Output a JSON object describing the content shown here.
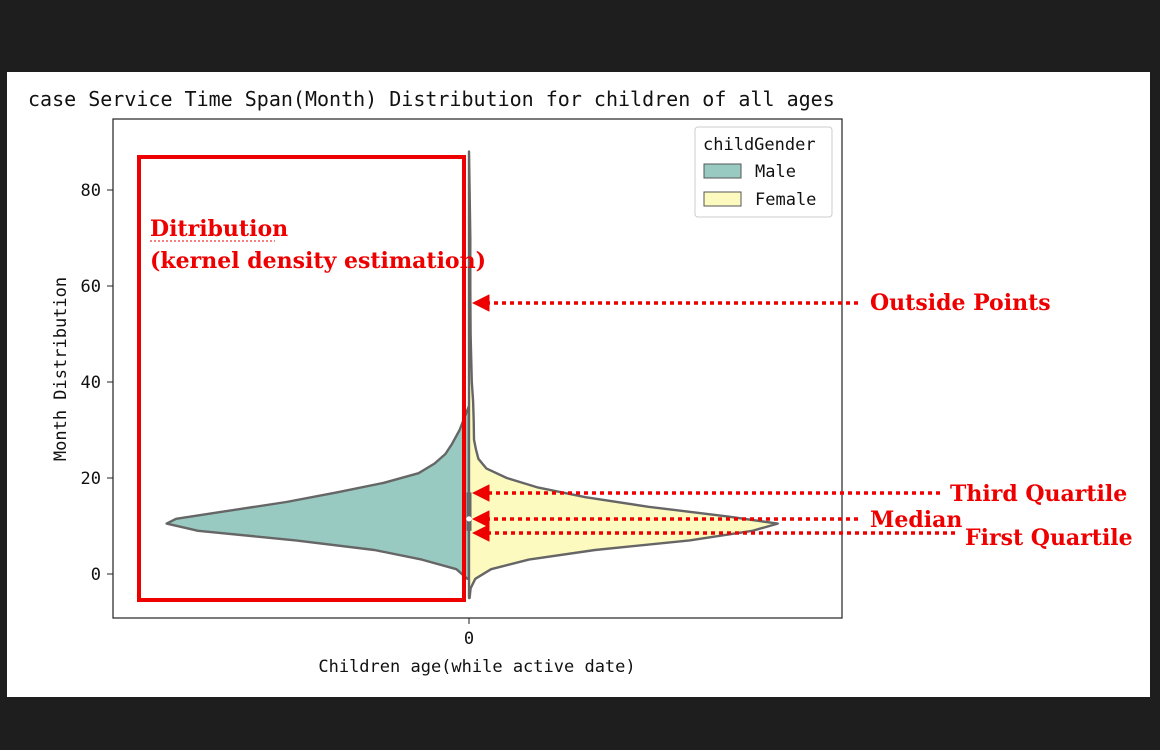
{
  "chart_data": {
    "type": "violin",
    "title": "case Service Time Span(Month) Distribution for children of all ages",
    "xlabel": "Children age(while active date)",
    "ylabel": "Month Distribution",
    "categories": [
      "0"
    ],
    "ylim": [
      -9,
      95
    ],
    "yticks": [
      0,
      20,
      40,
      60,
      80
    ],
    "legend": {
      "title": "childGender",
      "placement": "top-right",
      "entries": [
        {
          "name": "Male",
          "color": "#98cac1"
        },
        {
          "name": "Female",
          "color": "#fdfac0"
        }
      ]
    },
    "series": [
      {
        "name": "Male",
        "side": "left",
        "color": "#98cac1",
        "density": [
          {
            "y": -1,
            "d": 0.005
          },
          {
            "y": 1,
            "d": 0.04
          },
          {
            "y": 3,
            "d": 0.15
          },
          {
            "y": 5,
            "d": 0.3
          },
          {
            "y": 7,
            "d": 0.55
          },
          {
            "y": 9,
            "d": 0.86
          },
          {
            "y": 10.5,
            "d": 0.96
          },
          {
            "y": 11.5,
            "d": 0.93
          },
          {
            "y": 13,
            "d": 0.78
          },
          {
            "y": 15,
            "d": 0.58
          },
          {
            "y": 17,
            "d": 0.42
          },
          {
            "y": 19,
            "d": 0.27
          },
          {
            "y": 21,
            "d": 0.16
          },
          {
            "y": 23,
            "d": 0.11
          },
          {
            "y": 25,
            "d": 0.075
          },
          {
            "y": 27,
            "d": 0.055
          },
          {
            "y": 30,
            "d": 0.03
          },
          {
            "y": 33,
            "d": 0.012
          },
          {
            "y": 35,
            "d": 0.0
          }
        ]
      },
      {
        "name": "Female",
        "side": "right",
        "color": "#fdfac0",
        "density": [
          {
            "y": -5,
            "d": 0.002
          },
          {
            "y": -3,
            "d": 0.005
          },
          {
            "y": -1,
            "d": 0.02
          },
          {
            "y": 1,
            "d": 0.07
          },
          {
            "y": 3,
            "d": 0.19
          },
          {
            "y": 5,
            "d": 0.4
          },
          {
            "y": 7,
            "d": 0.7
          },
          {
            "y": 9,
            "d": 0.9
          },
          {
            "y": 10.5,
            "d": 0.98
          },
          {
            "y": 12,
            "d": 0.82
          },
          {
            "y": 14,
            "d": 0.57
          },
          {
            "y": 16,
            "d": 0.37
          },
          {
            "y": 18,
            "d": 0.22
          },
          {
            "y": 20,
            "d": 0.12
          },
          {
            "y": 22,
            "d": 0.055
          },
          {
            "y": 24,
            "d": 0.03
          },
          {
            "y": 26,
            "d": 0.022
          },
          {
            "y": 28,
            "d": 0.016
          },
          {
            "y": 32,
            "d": 0.015
          },
          {
            "y": 36,
            "d": 0.013
          },
          {
            "y": 40,
            "d": 0.009
          },
          {
            "y": 45,
            "d": 0.007
          },
          {
            "y": 50,
            "d": 0.005
          },
          {
            "y": 60,
            "d": 0.004
          },
          {
            "y": 70,
            "d": 0.004
          },
          {
            "y": 80,
            "d": 0.002
          },
          {
            "y": 88,
            "d": 0.0
          }
        ]
      }
    ],
    "box": {
      "q1": 9,
      "median": 11.5,
      "q3": 17
    },
    "annotations": {
      "distribution_line1": "Ditribution",
      "distribution_line2": "(kernel density estimation)",
      "outside_points": "Outside Points",
      "third_quartile": "Third Quartile",
      "median": "Median",
      "first_quartile": "First Quartile"
    }
  }
}
